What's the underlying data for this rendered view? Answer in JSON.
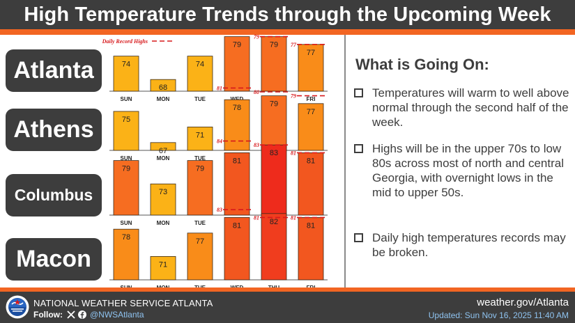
{
  "header": {
    "title": "High Temperature Trends through the Upcoming Week"
  },
  "colors": {
    "header_bg": "#3d3d3d",
    "accent_orange": "#f26522",
    "record_line": "#d7191c",
    "bar_outline": "#3a2a1a"
  },
  "legend": {
    "label": "Daily Record Highs"
  },
  "chart_data": [
    {
      "type": "bar",
      "title": "Atlanta",
      "categories": [
        "SUN",
        "MON",
        "TUE",
        "WED",
        "THU",
        "FRI"
      ],
      "values": [
        74,
        68,
        74,
        79,
        79,
        77
      ],
      "value_labels": [
        "74",
        "68",
        "74",
        "79",
        "79",
        "77"
      ],
      "records": [
        null,
        null,
        null,
        80,
        79,
        77
      ],
      "record_labels": [
        "",
        "",
        "",
        "80",
        "79",
        "77"
      ],
      "colors": [
        "#fbb217",
        "#fbb217",
        "#fbb217",
        "#f66d21",
        "#f66d21",
        "#f98c19"
      ]
    },
    {
      "type": "bar",
      "title": "Athens",
      "categories": [
        "SUN",
        "MON",
        "TUE",
        "WED",
        "THU",
        "FRI"
      ],
      "values": [
        75,
        67,
        71,
        78,
        79,
        77
      ],
      "value_labels": [
        "75",
        "67",
        "71",
        "78",
        "79",
        "77"
      ],
      "records": [
        null,
        null,
        null,
        81,
        80,
        79
      ],
      "record_labels": [
        "",
        "",
        "",
        "81",
        "80",
        "79"
      ],
      "colors": [
        "#fbb217",
        "#fbb217",
        "#fbb217",
        "#f98c19",
        "#f66d21",
        "#f98c19"
      ]
    },
    {
      "type": "bar",
      "title": "Columbus",
      "categories": [
        "SUN",
        "MON",
        "TUE",
        "WED",
        "THU",
        "FRI"
      ],
      "values": [
        79,
        73,
        79,
        81,
        83,
        81
      ],
      "value_labels": [
        "79",
        "73",
        "79",
        "81",
        "83",
        "81"
      ],
      "records": [
        null,
        null,
        null,
        84,
        83,
        81
      ],
      "record_labels": [
        "",
        "",
        "",
        "84",
        "83",
        "81"
      ],
      "colors": [
        "#f66d21",
        "#fbb217",
        "#f66d21",
        "#f2571f",
        "#ee2b1c",
        "#f2571f"
      ]
    },
    {
      "type": "bar",
      "title": "Macon",
      "categories": [
        "SUN",
        "MON",
        "TUE",
        "WED",
        "THU",
        "FRI"
      ],
      "values": [
        78,
        71,
        77,
        81,
        82,
        81
      ],
      "value_labels": [
        "78",
        "71",
        "77",
        "81",
        "82",
        "81"
      ],
      "records": [
        null,
        null,
        null,
        83,
        81,
        81
      ],
      "record_labels": [
        "",
        "",
        "",
        "83",
        "81",
        "81"
      ],
      "colors": [
        "#f98c19",
        "#fbb217",
        "#f98c19",
        "#f2571f",
        "#f03d1e",
        "#f2571f"
      ]
    }
  ],
  "info": {
    "heading": "What is Going On:",
    "bullets": [
      "Temperatures will warm to well above normal through the second half of the week.",
      "Highs will be in the upper 70s to low 80s across most of north and central Georgia, with overnight lows in the mid to upper 50s.",
      "Daily high temperatures records may be broken."
    ]
  },
  "footer": {
    "org": "NATIONAL WEATHER SERVICE ATLANTA",
    "follow_label": "Follow:",
    "handle": "@NWSAtlanta",
    "website": "weather.gov/Atlanta",
    "updated": "Updated: Sun Nov 16, 2025 11:40 AM"
  }
}
